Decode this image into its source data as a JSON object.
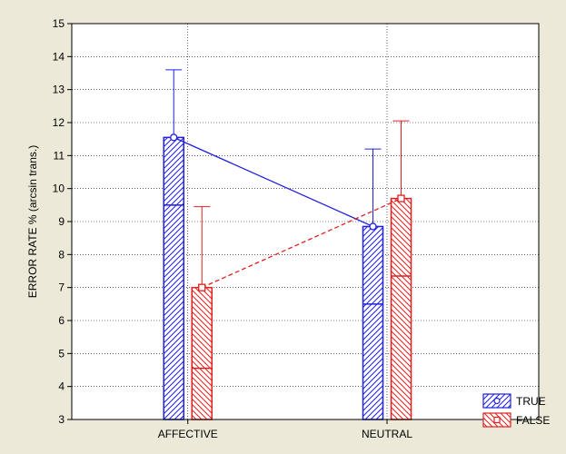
{
  "chart_data": {
    "type": "bar",
    "ylabel": "ERROR RATE % (arcsin trans.)",
    "xlabel": "",
    "title": "",
    "ylim": [
      3,
      15
    ],
    "yticks": [
      "3",
      "4",
      "5",
      "6",
      "7",
      "8",
      "9",
      "10",
      "11",
      "12",
      "13",
      "14",
      "15"
    ],
    "categories": [
      "AFFECTIVE",
      "NEUTRAL"
    ],
    "grid": true,
    "legend_position": "bottom-right",
    "series": [
      {
        "name": "TRUE",
        "color": "#2020e0",
        "line_style": "solid",
        "hatch": "diagonal-up",
        "values": [
          11.55,
          8.85
        ],
        "error_upper": [
          13.6,
          11.2
        ],
        "error_lower": [
          9.5,
          6.5
        ]
      },
      {
        "name": "FALSE",
        "color": "#e02020",
        "line_style": "dashed",
        "hatch": "diagonal-down",
        "values": [
          7.0,
          9.7
        ],
        "error_upper": [
          9.45,
          12.05
        ],
        "error_lower": [
          4.55,
          7.35
        ]
      }
    ]
  }
}
